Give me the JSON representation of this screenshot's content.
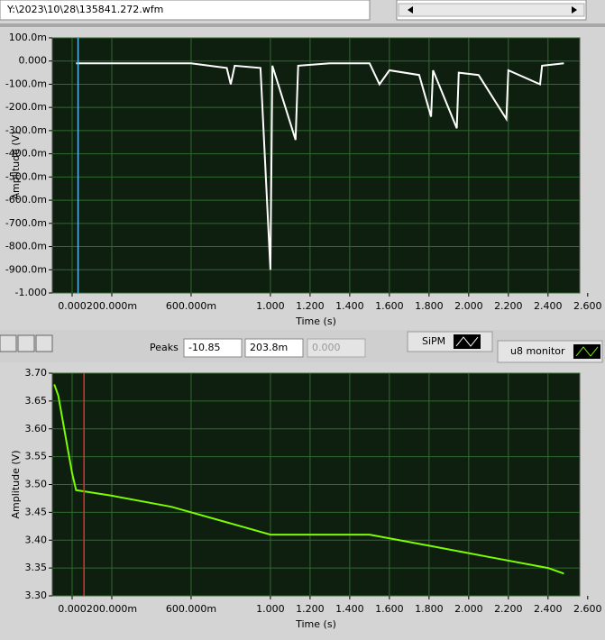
{
  "file_path": "Y:\\2023\\10\\28\\135841.272.wfm",
  "peaks": {
    "label": "Peaks",
    "fields": [
      "-10.85",
      "203.8m",
      "0.000"
    ]
  },
  "plots": [
    "SiPM",
    "u8 monitor"
  ],
  "chart_data": [
    {
      "type": "line",
      "ylabel": "Amplitude (V)",
      "xlabel": "Time (s)",
      "xlim": [
        -0.1,
        2.56
      ],
      "ylim": [
        -1.0,
        0.1
      ],
      "xticks": [
        {
          "value": 0,
          "label": "0.000"
        },
        {
          "value": 0.2,
          "label": "200.000m"
        },
        {
          "value": 0.6,
          "label": "600.000m"
        },
        {
          "value": 1.0,
          "label": "1.000"
        },
        {
          "value": 1.2,
          "label": "1.200"
        },
        {
          "value": 1.4,
          "label": "1.400"
        },
        {
          "value": 1.6,
          "label": "1.600"
        },
        {
          "value": 1.8,
          "label": "1.800"
        },
        {
          "value": 2.0,
          "label": "2.000"
        },
        {
          "value": 2.2,
          "label": "2.200"
        },
        {
          "value": 2.4,
          "label": "2.400"
        },
        {
          "value": 2.6,
          "label": "2.600"
        }
      ],
      "yticks": [
        {
          "value": 0.1,
          "label": "100.0m"
        },
        {
          "value": 0,
          "label": "0.000"
        },
        {
          "value": -0.1,
          "label": "-100.0m"
        },
        {
          "value": -0.2,
          "label": "-200.0m"
        },
        {
          "value": -0.3,
          "label": "-300.0m"
        },
        {
          "value": -0.4,
          "label": "-400.0m"
        },
        {
          "value": -0.5,
          "label": "-500.0m"
        },
        {
          "value": -0.6,
          "label": "-600.0m"
        },
        {
          "value": -0.7,
          "label": "-700.0m"
        },
        {
          "value": -0.8,
          "label": "-800.0m"
        },
        {
          "value": -0.9,
          "label": "-900.0m"
        },
        {
          "value": -1.0,
          "label": "-1.000"
        }
      ],
      "grid": true,
      "cursor": 0.03,
      "cursor_color": "#5ab4f0",
      "x": [
        0.02,
        0.3,
        0.6,
        0.78,
        0.8,
        0.82,
        0.95,
        1.0,
        1.01,
        1.127,
        1.14,
        1.3,
        1.5,
        1.55,
        1.6,
        1.75,
        1.81,
        1.82,
        1.94,
        1.95,
        2.05,
        2.19,
        2.2,
        2.36,
        2.37,
        2.48
      ],
      "series": [
        {
          "name": "SiPM",
          "color": "#ffffff",
          "values": [
            -0.01,
            -0.01,
            -0.01,
            -0.03,
            -0.1,
            -0.02,
            -0.03,
            -0.9,
            -0.02,
            -0.34,
            -0.02,
            -0.01,
            -0.01,
            -0.1,
            -0.04,
            -0.06,
            -0.24,
            -0.04,
            -0.29,
            -0.05,
            -0.06,
            -0.25,
            -0.04,
            -0.1,
            -0.02,
            -0.01
          ]
        }
      ]
    },
    {
      "type": "line",
      "ylabel": "Amplitude (V)",
      "xlabel": "Time (s)",
      "xlim": [
        -0.1,
        2.56
      ],
      "ylim": [
        3.3,
        3.7
      ],
      "xticks": [
        {
          "value": 0,
          "label": "0.000"
        },
        {
          "value": 0.2,
          "label": "200.000m"
        },
        {
          "value": 0.6,
          "label": "600.000m"
        },
        {
          "value": 1.0,
          "label": "1.000"
        },
        {
          "value": 1.2,
          "label": "1.200"
        },
        {
          "value": 1.4,
          "label": "1.400"
        },
        {
          "value": 1.6,
          "label": "1.600"
        },
        {
          "value": 1.8,
          "label": "1.800"
        },
        {
          "value": 2.0,
          "label": "2.000"
        },
        {
          "value": 2.2,
          "label": "2.200"
        },
        {
          "value": 2.4,
          "label": "2.400"
        },
        {
          "value": 2.6,
          "label": "2.600"
        }
      ],
      "yticks": [
        {
          "value": 3.7,
          "label": "3.70"
        },
        3.65,
        {
          "value": 3.6,
          "label": "3.60"
        },
        3.55,
        {
          "value": 3.5,
          "label": "3.50"
        },
        3.45,
        {
          "value": 3.4,
          "label": "3.40"
        },
        3.35,
        {
          "value": 3.3,
          "label": "3.30"
        }
      ],
      "grid": true,
      "cursor": 0.06,
      "cursor_color": "#e03030",
      "x": [
        -0.09,
        -0.07,
        0.0,
        0.02,
        0.2,
        0.5,
        0.8,
        1.0,
        1.3,
        1.5,
        1.8,
        2.1,
        2.4,
        2.48
      ],
      "series": [
        {
          "name": "u8 monitor",
          "color": "#7cfc00",
          "values": [
            3.68,
            3.66,
            3.52,
            3.49,
            3.48,
            3.46,
            3.43,
            3.41,
            3.41,
            3.41,
            3.39,
            3.37,
            3.35,
            3.34
          ]
        }
      ]
    }
  ]
}
